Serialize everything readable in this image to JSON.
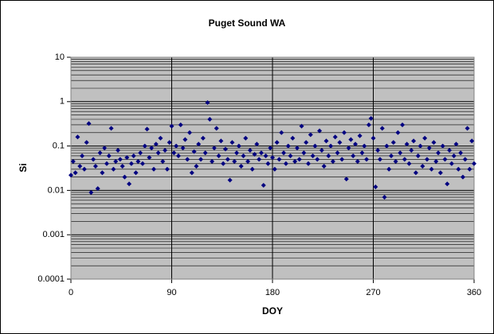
{
  "chart_data": {
    "type": "scatter",
    "title": "Puget Sound WA",
    "x_label": "DOY",
    "y_label": "Si",
    "xlim": [
      0,
      360
    ],
    "xticks": [
      0,
      90,
      180,
      270,
      360
    ],
    "ylim": [
      0.0001,
      10
    ],
    "yticks": [
      0.0001,
      0.001,
      0.01,
      0.1,
      1,
      10
    ],
    "y_log": true,
    "grid": true,
    "x": [
      0,
      2,
      4,
      6,
      8,
      10,
      12,
      14,
      16,
      18,
      20,
      22,
      24,
      26,
      28,
      30,
      32,
      34,
      36,
      38,
      40,
      42,
      44,
      46,
      48,
      50,
      52,
      54,
      56,
      58,
      60,
      62,
      64,
      66,
      68,
      70,
      72,
      74,
      76,
      78,
      80,
      82,
      84,
      86,
      88,
      90,
      92,
      94,
      96,
      98,
      100,
      102,
      104,
      106,
      108,
      110,
      112,
      114,
      116,
      118,
      120,
      122,
      124,
      126,
      128,
      130,
      132,
      134,
      136,
      138,
      140,
      142,
      144,
      146,
      148,
      150,
      152,
      154,
      156,
      158,
      160,
      162,
      164,
      166,
      168,
      170,
      172,
      174,
      176,
      178,
      180,
      182,
      184,
      186,
      188,
      190,
      192,
      194,
      196,
      198,
      200,
      202,
      204,
      206,
      208,
      210,
      212,
      214,
      216,
      218,
      220,
      222,
      224,
      226,
      228,
      230,
      232,
      234,
      236,
      238,
      240,
      242,
      244,
      246,
      248,
      250,
      252,
      254,
      256,
      258,
      260,
      262,
      264,
      266,
      268,
      270,
      272,
      274,
      276,
      278,
      280,
      282,
      284,
      286,
      288,
      290,
      292,
      294,
      296,
      298,
      300,
      302,
      304,
      306,
      308,
      310,
      312,
      314,
      316,
      318,
      320,
      322,
      324,
      326,
      328,
      330,
      332,
      334,
      336,
      338,
      340,
      342,
      344,
      346,
      348,
      350,
      352,
      354,
      356,
      358,
      360
    ],
    "series": [
      {
        "name": "Si",
        "color": "#000080",
        "values": [
          0.022,
          0.045,
          0.025,
          0.16,
          0.035,
          0.06,
          0.03,
          0.12,
          0.32,
          0.009,
          0.05,
          0.035,
          0.011,
          0.07,
          0.025,
          0.09,
          0.04,
          0.06,
          0.25,
          0.03,
          0.045,
          0.08,
          0.05,
          0.035,
          0.02,
          0.055,
          0.014,
          0.04,
          0.06,
          0.025,
          0.045,
          0.07,
          0.04,
          0.1,
          0.24,
          0.055,
          0.09,
          0.03,
          0.11,
          0.07,
          0.15,
          0.045,
          0.08,
          0.03,
          0.12,
          0.28,
          0.07,
          0.1,
          0.06,
          0.3,
          0.09,
          0.14,
          0.05,
          0.2,
          0.025,
          0.075,
          0.035,
          0.11,
          0.05,
          0.15,
          0.07,
          0.95,
          0.4,
          0.045,
          0.09,
          0.25,
          0.06,
          0.13,
          0.04,
          0.085,
          0.05,
          0.017,
          0.12,
          0.045,
          0.07,
          0.1,
          0.035,
          0.06,
          0.15,
          0.045,
          0.08,
          0.03,
          0.065,
          0.11,
          0.05,
          0.07,
          0.013,
          0.06,
          0.04,
          0.09,
          0.055,
          0.03,
          0.12,
          0.05,
          0.2,
          0.07,
          0.04,
          0.1,
          0.06,
          0.15,
          0.045,
          0.09,
          0.05,
          0.28,
          0.07,
          0.12,
          0.04,
          0.18,
          0.06,
          0.1,
          0.05,
          0.22,
          0.08,
          0.035,
          0.13,
          0.06,
          0.1,
          0.045,
          0.16,
          0.07,
          0.12,
          0.05,
          0.2,
          0.018,
          0.09,
          0.14,
          0.06,
          0.11,
          0.045,
          0.17,
          0.07,
          0.1,
          0.05,
          0.3,
          0.42,
          0.15,
          0.012,
          0.08,
          0.05,
          0.25,
          0.007,
          0.1,
          0.03,
          0.06,
          0.12,
          0.045,
          0.2,
          0.07,
          0.3,
          0.05,
          0.11,
          0.04,
          0.08,
          0.13,
          0.025,
          0.06,
          0.1,
          0.035,
          0.15,
          0.05,
          0.09,
          0.03,
          0.12,
          0.045,
          0.07,
          0.025,
          0.1,
          0.05,
          0.014,
          0.08,
          0.04,
          0.06,
          0.11,
          0.03,
          0.07,
          0.02,
          0.05,
          0.25,
          0.03,
          0.13,
          0.04
        ]
      }
    ]
  }
}
